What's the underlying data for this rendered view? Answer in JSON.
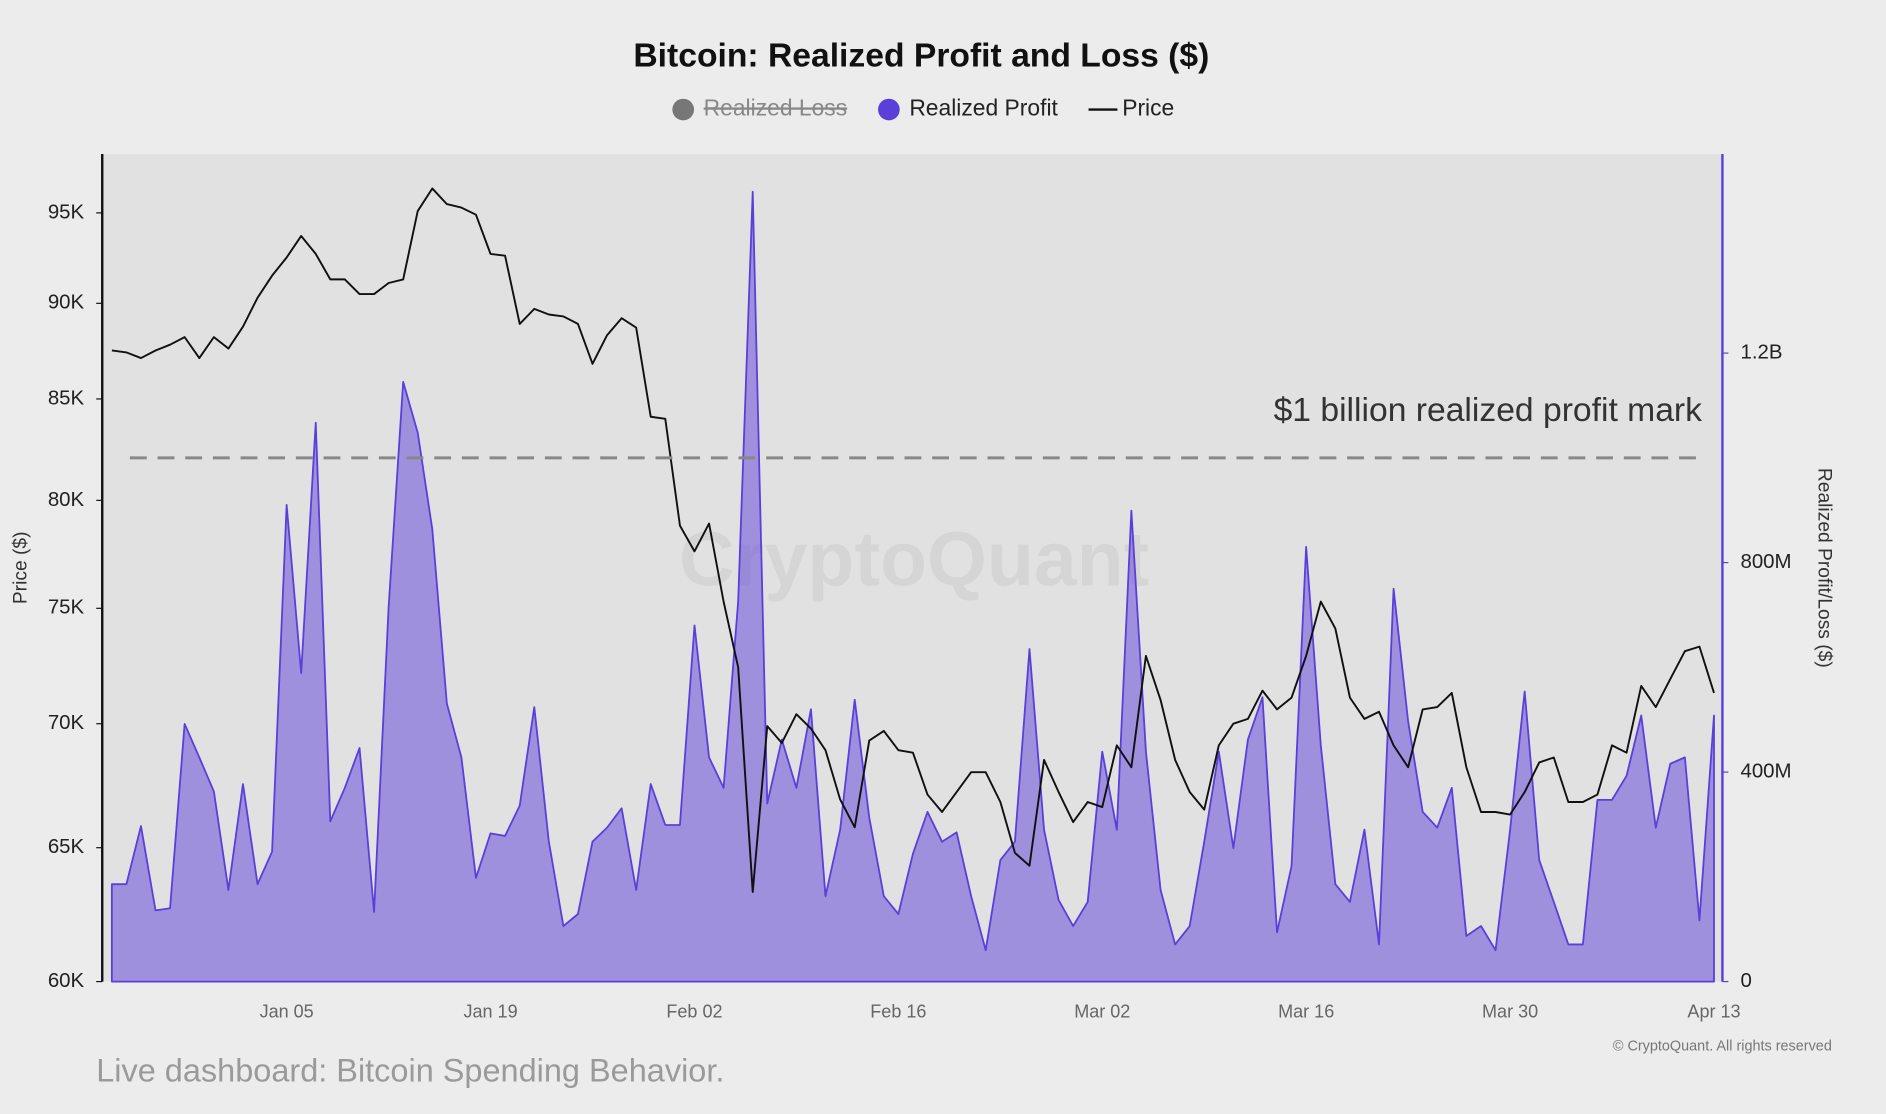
{
  "chart_data": {
    "type": "area-line",
    "title": "Bitcoin: Realized Profit and Loss ($)",
    "ylabel": "Price ($)",
    "y2label": "Realized Profit/Loss ($)",
    "watermark": "CryptoQuant",
    "credit": "© CryptoQuant. All rights reserved",
    "log_y": true,
    "grid": false,
    "legend": "top",
    "categories": [
      null,
      null,
      null,
      null,
      null,
      null,
      null,
      null,
      null,
      null,
      null,
      null,
      "Jan 05",
      null,
      null,
      null,
      null,
      null,
      null,
      null,
      null,
      null,
      null,
      null,
      null,
      null,
      "Jan 19",
      null,
      null,
      null,
      null,
      null,
      null,
      null,
      null,
      null,
      null,
      null,
      null,
      null,
      "Feb 02",
      null,
      null,
      null,
      null,
      null,
      null,
      null,
      null,
      null,
      null,
      null,
      null,
      null,
      "Feb 16",
      null,
      null,
      null,
      null,
      null,
      null,
      null,
      null,
      null,
      null,
      null,
      null,
      null,
      "Mar 02",
      null,
      null,
      null,
      null,
      null,
      null,
      null,
      null,
      null,
      null,
      null,
      null,
      null,
      "Mar 16",
      null,
      null,
      null,
      null,
      null,
      null,
      null,
      null,
      null,
      null,
      null,
      null,
      null,
      "Mar 30",
      null,
      null,
      null,
      null,
      null,
      null,
      null,
      null,
      null,
      null,
      null,
      null,
      null,
      "Apr 13"
    ],
    "ylim": [
      60000,
      98400
    ],
    "yticks": [
      {
        "value": 60000,
        "label": "60K"
      },
      {
        "value": 65000,
        "label": "65K"
      },
      {
        "value": 70000,
        "label": "70K"
      },
      {
        "value": 75000,
        "label": "75K"
      },
      {
        "value": 80000,
        "label": "80K"
      },
      {
        "value": 85000,
        "label": "85K"
      },
      {
        "value": 90000,
        "label": "90K"
      },
      {
        "value": 95000,
        "label": "95K"
      }
    ],
    "y2lim": [
      0,
      1580000000
    ],
    "y2ticks": [
      0,
      {
        "value": 400000000,
        "label": "400M"
      },
      {
        "value": 800000000,
        "label": "800M"
      },
      {
        "value": 1200000000,
        "label": "1.2B"
      }
    ],
    "reference_line": {
      "value": 1000000000,
      "axis": "y2",
      "label": "$1 billion realized profit mark"
    },
    "series": [
      {
        "name": "Realized Loss",
        "color": "#777777",
        "visible": false
      },
      {
        "name": "Realized Profit",
        "color": "#5b3fd9",
        "axis": "y2",
        "type": "area",
        "values": [
          186000000,
          186000000,
          297000000,
          136000000,
          140000000,
          492000000,
          428000000,
          363000000,
          175000000,
          377000000,
          186000000,
          248000000,
          910000000,
          589000000,
          1067000000,
          306000000,
          370000000,
          446000000,
          133000000,
          715000000,
          1145000000,
          1048000000,
          864000000,
          531000000,
          428000000,
          198000000,
          283000000,
          278000000,
          336000000,
          524000000,
          267000000,
          106000000,
          129000000,
          267000000,
          294000000,
          331000000,
          175000000,
          377000000,
          299000000,
          299000000,
          680000000,
          428000000,
          370000000,
          726000000,
          1508000000,
          340000000,
          462000000,
          370000000,
          520000000,
          163000000,
          290000000,
          538000000,
          313000000,
          163000000,
          129000000,
          244000000,
          324000000,
          267000000,
          285000000,
          163000000,
          60000000,
          232000000,
          267000000,
          635000000,
          290000000,
          156000000,
          106000000,
          152000000,
          439000000,
          290000000,
          899000000,
          439000000,
          175000000,
          71000000,
          106000000,
          267000000,
          439000000,
          255000000,
          462000000,
          543000000,
          94000000,
          221000000,
          830000000,
          451000000,
          186000000,
          152000000,
          290000000,
          71000000,
          750000000,
          497000000,
          324000000,
          294000000,
          370000000,
          87000000,
          106000000,
          60000000,
          290000000,
          554000000,
          232000000,
          152000000,
          71000000,
          71000000,
          347000000,
          347000000,
          393000000,
          508000000,
          294000000,
          416000000,
          428000000,
          117000000,
          508000000
        ]
      },
      {
        "name": "Price",
        "color": "#111111",
        "type": "line",
        "values": [
          87500,
          87400,
          87100,
          87500,
          87800,
          88200,
          87100,
          88200,
          87600,
          88750,
          90300,
          91500,
          92500,
          93700,
          92700,
          91300,
          91300,
          90500,
          90500,
          91100,
          91300,
          95100,
          96400,
          95500,
          95300,
          94900,
          92700,
          92600,
          88900,
          89700,
          89400,
          89300,
          88900,
          86800,
          88300,
          89200,
          88700,
          84100,
          84000,
          78800,
          77600,
          78900,
          75300,
          72400,
          63300,
          69900,
          69200,
          70400,
          69800,
          68900,
          66900,
          65800,
          69300,
          69700,
          68900,
          68800,
          67100,
          66400,
          67200,
          68000,
          68000,
          66800,
          64800,
          64300,
          68500,
          67200,
          66000,
          66800,
          66600,
          69100,
          68200,
          72900,
          71000,
          68500,
          67200,
          66500,
          69100,
          70000,
          70200,
          71400,
          70600,
          71100,
          72900,
          75300,
          74100,
          71100,
          70200,
          70500,
          69100,
          68200,
          70600,
          70700,
          71300,
          68200,
          66400,
          66400,
          66300,
          67200,
          68400,
          68600,
          66800,
          66800,
          67100,
          69100,
          68800,
          71600,
          70700,
          71900,
          73100,
          73300,
          71300
        ]
      }
    ]
  },
  "caption": "Live dashboard: Bitcoin Spending Behavior."
}
